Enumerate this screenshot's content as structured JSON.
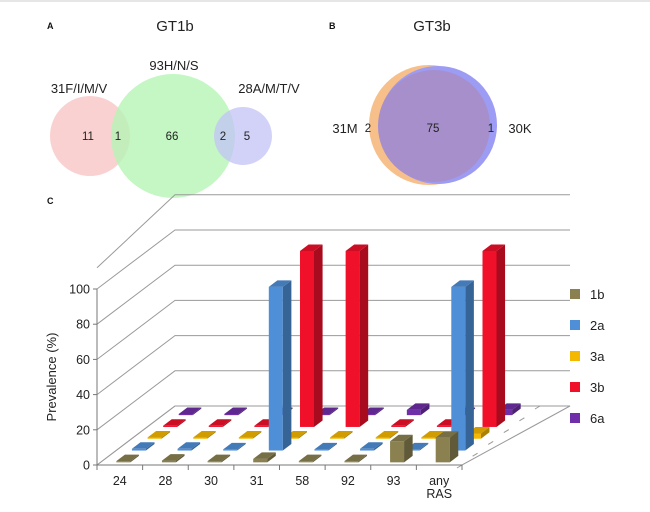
{
  "panels": {
    "A": {
      "letter": "A",
      "title": "GT1b",
      "sets": [
        {
          "name": "31F/I/M/V",
          "color": "#f9c9c9"
        },
        {
          "name": "93H/N/S",
          "color": "#b5f5b5"
        },
        {
          "name": "28A/M/T/V",
          "color": "#c3c3f7"
        }
      ],
      "regions": [
        {
          "sets": [
            "31F/I/M/V"
          ],
          "count": "11"
        },
        {
          "sets": [
            "31F/I/M/V",
            "93H/N/S"
          ],
          "count": "1"
        },
        {
          "sets": [
            "93H/N/S"
          ],
          "count": "66"
        },
        {
          "sets": [
            "93H/N/S",
            "28A/M/T/V"
          ],
          "count": "2"
        },
        {
          "sets": [
            "28A/M/T/V"
          ],
          "count": "5"
        }
      ]
    },
    "B": {
      "letter": "B",
      "title": "GT3b",
      "sets": [
        {
          "name": "31M",
          "color": "#f7bf8a"
        },
        {
          "name": "30K",
          "color": "#9d9cf5"
        }
      ],
      "overlap_color": "#a68fcb",
      "regions": [
        {
          "sets": [
            "31M"
          ],
          "count": "2"
        },
        {
          "sets": [
            "31M",
            "30K"
          ],
          "count": "75"
        },
        {
          "sets": [
            "30K"
          ],
          "count": "1"
        }
      ]
    },
    "C": {
      "letter": "C"
    }
  },
  "chart_data": {
    "type": "bar",
    "style": "3d-grouped-depth",
    "title": "",
    "xlabel": "",
    "ylabel": "Prevalence (%)",
    "ylim": [
      0,
      100
    ],
    "yticks": [
      0,
      20,
      40,
      60,
      80,
      100
    ],
    "grid": true,
    "legend_position": "right",
    "categories": [
      "24",
      "28",
      "30",
      "31",
      "58",
      "92",
      "93",
      "any\nRAS"
    ],
    "category_labels": [
      [
        "24"
      ],
      [
        "28"
      ],
      [
        "30"
      ],
      [
        "31"
      ],
      [
        "58"
      ],
      [
        "92"
      ],
      [
        "93"
      ],
      [
        "any",
        "RAS"
      ]
    ],
    "series": [
      {
        "name": "1b",
        "color": "#8b8150",
        "values": [
          0,
          1,
          0,
          2,
          0,
          0,
          12,
          14
        ]
      },
      {
        "name": "2a",
        "color": "#4f8fd8",
        "values": [
          1,
          1,
          0,
          93,
          0,
          1,
          0,
          93
        ]
      },
      {
        "name": "3a",
        "color": "#f5b800",
        "values": [
          0,
          0,
          0,
          0,
          0,
          0,
          0,
          3
        ]
      },
      {
        "name": "3b",
        "color": "#f0102a",
        "values": [
          0,
          0,
          0,
          100,
          100,
          0,
          0,
          100
        ]
      },
      {
        "name": "6a",
        "color": "#6f2fa8",
        "values": [
          0,
          0,
          0,
          0,
          0,
          3,
          0,
          3
        ]
      }
    ]
  }
}
